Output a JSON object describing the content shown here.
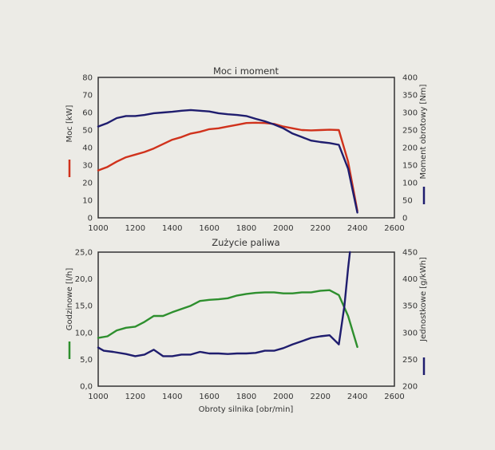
{
  "colors": {
    "background": "#ecebe6",
    "red": "#d0321c",
    "navy": "#1f1d6e",
    "green": "#2e8f2e",
    "axis": "#333333"
  },
  "chart_data": [
    {
      "type": "line",
      "title": "Moc i moment",
      "xlim": [
        1000,
        2600
      ],
      "xticks": [
        1000,
        1200,
        1400,
        1600,
        1800,
        2000,
        2200,
        2400,
        2600
      ],
      "xtick_labels": [
        "1000",
        "1200",
        "1400",
        "1600",
        "1800",
        "2000",
        "2200",
        "2400",
        "2600"
      ],
      "xlabel": "",
      "y_left": {
        "label": "Moc [kW]",
        "lim": [
          0,
          80
        ],
        "ticks": [
          0,
          10,
          20,
          30,
          40,
          50,
          60,
          70,
          80
        ],
        "tick_labels": [
          "0",
          "10",
          "20",
          "30",
          "40",
          "50",
          "60",
          "70",
          "80"
        ]
      },
      "y_right": {
        "label": "Moment obrotowy [Nm]",
        "lim": [
          0,
          400
        ],
        "ticks": [
          0,
          50,
          100,
          150,
          200,
          250,
          300,
          350,
          400
        ],
        "tick_labels": [
          "0",
          "50",
          "100",
          "150",
          "200",
          "250",
          "300",
          "350",
          "400"
        ]
      },
      "grid": false,
      "legend": "none",
      "series": [
        {
          "axis": "left",
          "color": "red",
          "x": [
            1000,
            1050,
            1100,
            1150,
            1200,
            1250,
            1300,
            1350,
            1400,
            1450,
            1500,
            1550,
            1600,
            1650,
            1700,
            1750,
            1800,
            1850,
            1900,
            1950,
            2000,
            2050,
            2100,
            2150,
            2200,
            2250,
            2300,
            2350,
            2400
          ],
          "y": [
            27,
            29,
            32,
            34.5,
            36,
            37.5,
            39.5,
            42,
            44.5,
            46,
            48,
            49,
            50.5,
            51,
            52,
            53,
            54,
            54.2,
            54,
            53.5,
            52,
            51,
            50,
            49.8,
            50,
            50.2,
            50,
            32,
            4
          ]
        },
        {
          "axis": "right",
          "color": "navy",
          "x": [
            1000,
            1050,
            1100,
            1150,
            1200,
            1250,
            1300,
            1350,
            1400,
            1450,
            1500,
            1550,
            1600,
            1650,
            1700,
            1750,
            1800,
            1850,
            1900,
            1950,
            2000,
            2050,
            2100,
            2150,
            2200,
            2250,
            2300,
            2350,
            2400
          ],
          "y": [
            260,
            270,
            284,
            290,
            290,
            293,
            298,
            300,
            302,
            305,
            307,
            305,
            303,
            298,
            295,
            293,
            290,
            282,
            275,
            266,
            255,
            240,
            230,
            220,
            216,
            213,
            208,
            140,
            15
          ]
        }
      ]
    },
    {
      "type": "line",
      "title": "Zużycie paliwa",
      "xlim": [
        1000,
        2600
      ],
      "xticks": [
        1000,
        1200,
        1400,
        1600,
        1800,
        2000,
        2200,
        2400,
        2600
      ],
      "xtick_labels": [
        "1000",
        "1200",
        "1400",
        "1600",
        "1800",
        "2000",
        "2200",
        "2400",
        "2600"
      ],
      "xlabel": "Obroty silnika [obr/min]",
      "y_left": {
        "label": "Godzinowe [l/h]",
        "lim": [
          0,
          25
        ],
        "ticks": [
          0,
          5,
          10,
          15,
          20,
          25
        ],
        "tick_labels": [
          "0,0",
          "5,0",
          "10,0",
          "15,0",
          "20,0",
          "25,0"
        ]
      },
      "y_right": {
        "label": "Jednostkowe [g/kWh]",
        "lim": [
          200,
          450
        ],
        "ticks": [
          200,
          250,
          300,
          350,
          400,
          450
        ],
        "tick_labels": [
          "200",
          "250",
          "300",
          "350",
          "400",
          "450"
        ]
      },
      "grid": false,
      "legend": "none",
      "series": [
        {
          "axis": "left",
          "color": "green",
          "x": [
            1000,
            1050,
            1100,
            1150,
            1200,
            1250,
            1300,
            1350,
            1400,
            1450,
            1500,
            1550,
            1600,
            1650,
            1700,
            1750,
            1800,
            1850,
            1900,
            1950,
            2000,
            2050,
            2100,
            2150,
            2200,
            2250,
            2300,
            2350,
            2400
          ],
          "y": [
            9,
            9.3,
            10.4,
            10.9,
            11.1,
            12,
            13.1,
            13.1,
            13.8,
            14.4,
            15,
            15.9,
            16.1,
            16.2,
            16.4,
            16.9,
            17.2,
            17.4,
            17.5,
            17.5,
            17.3,
            17.3,
            17.5,
            17.5,
            17.8,
            17.9,
            17,
            13.1,
            7.3
          ]
        },
        {
          "axis": "right",
          "color": "navy",
          "x": [
            1000,
            1030,
            1080,
            1150,
            1200,
            1250,
            1300,
            1350,
            1400,
            1450,
            1500,
            1550,
            1600,
            1650,
            1700,
            1750,
            1800,
            1850,
            1900,
            1950,
            2000,
            2050,
            2100,
            2150,
            2200,
            2250,
            2300,
            2330,
            2350,
            2360
          ],
          "y": [
            272,
            266,
            264,
            260,
            256,
            259,
            268,
            256,
            256,
            259,
            259,
            264,
            261,
            261,
            260,
            261,
            261,
            262,
            266,
            266,
            271,
            278,
            284,
            290,
            293,
            295,
            278,
            350,
            420,
            455
          ]
        }
      ]
    }
  ]
}
